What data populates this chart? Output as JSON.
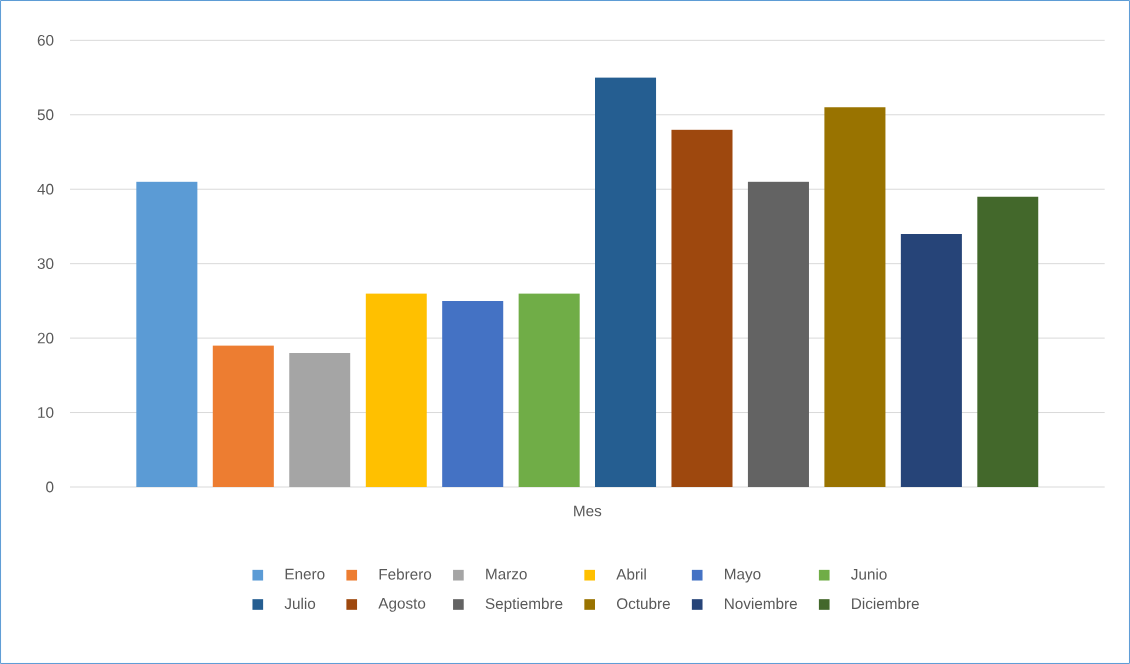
{
  "chart_data": {
    "type": "bar",
    "categories": [
      "Mes"
    ],
    "series": [
      {
        "name": "Enero",
        "color": "#5b9bd5",
        "values": [
          41
        ]
      },
      {
        "name": "Febrero",
        "color": "#ed7d31",
        "values": [
          19
        ]
      },
      {
        "name": "Marzo",
        "color": "#a5a5a5",
        "values": [
          18
        ]
      },
      {
        "name": "Abril",
        "color": "#ffc000",
        "values": [
          26
        ]
      },
      {
        "name": "Mayo",
        "color": "#4472c4",
        "values": [
          25
        ]
      },
      {
        "name": "Junio",
        "color": "#70ad47",
        "values": [
          26
        ]
      },
      {
        "name": "Julio",
        "color": "#255e91",
        "values": [
          55
        ]
      },
      {
        "name": "Agosto",
        "color": "#9e480e",
        "values": [
          48
        ]
      },
      {
        "name": "Septiembre",
        "color": "#636363",
        "values": [
          41
        ]
      },
      {
        "name": "Octubre",
        "color": "#997300",
        "values": [
          51
        ]
      },
      {
        "name": "Noviembre",
        "color": "#264478",
        "values": [
          34
        ]
      },
      {
        "name": "Diciembre",
        "color": "#43682b",
        "values": [
          39
        ]
      }
    ],
    "ylim": [
      0,
      60
    ],
    "yticks": [
      0,
      10,
      20,
      30,
      40,
      50,
      60
    ],
    "grid": "y",
    "legend": "bottom"
  }
}
